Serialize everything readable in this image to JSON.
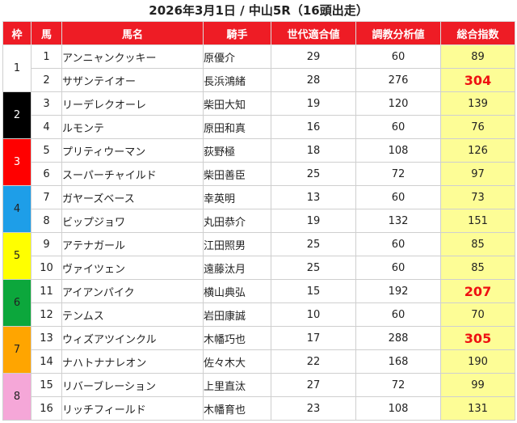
{
  "title": "2026年3月1日 / 中山5R（16頭出走）",
  "headers": {
    "waku": "枠",
    "umaban": "馬",
    "horse": "馬名",
    "jockey": "騎手",
    "generation": "世代適合値",
    "training": "調教分析値",
    "total": "総合指数"
  },
  "colors": {
    "header_bg": "#ee1c25",
    "score_bg": "#fdfd96",
    "highlight": "#ee1111"
  },
  "waku_groups": [
    {
      "label": "1",
      "class": "w1"
    },
    {
      "label": "2",
      "class": "w2"
    },
    {
      "label": "3",
      "class": "w3"
    },
    {
      "label": "4",
      "class": "w4"
    },
    {
      "label": "5",
      "class": "w5"
    },
    {
      "label": "6",
      "class": "w6"
    },
    {
      "label": "7",
      "class": "w7"
    },
    {
      "label": "8",
      "class": "w8"
    }
  ],
  "rows": [
    {
      "umaban": "1",
      "horse": "アンニャンクッキー",
      "jockey": "原優介",
      "generation": "29",
      "training": "60",
      "total": "89",
      "highlight": false
    },
    {
      "umaban": "2",
      "horse": "サザンテイオー",
      "jockey": "長浜鴻緒",
      "generation": "28",
      "training": "276",
      "total": "304",
      "highlight": true
    },
    {
      "umaban": "3",
      "horse": "リーデレクオーレ",
      "jockey": "柴田大知",
      "generation": "19",
      "training": "120",
      "total": "139",
      "highlight": false
    },
    {
      "umaban": "4",
      "horse": "ルモンテ",
      "jockey": "原田和真",
      "generation": "16",
      "training": "60",
      "total": "76",
      "highlight": false
    },
    {
      "umaban": "5",
      "horse": "プリティウーマン",
      "jockey": "荻野極",
      "generation": "18",
      "training": "108",
      "total": "126",
      "highlight": false
    },
    {
      "umaban": "6",
      "horse": "スーパーチャイルド",
      "jockey": "柴田善臣",
      "generation": "25",
      "training": "72",
      "total": "97",
      "highlight": false
    },
    {
      "umaban": "7",
      "horse": "ガヤーズベース",
      "jockey": "幸英明",
      "generation": "13",
      "training": "60",
      "total": "73",
      "highlight": false
    },
    {
      "umaban": "8",
      "horse": "ビップジョワ",
      "jockey": "丸田恭介",
      "generation": "19",
      "training": "132",
      "total": "151",
      "highlight": false
    },
    {
      "umaban": "9",
      "horse": "アテナガール",
      "jockey": "江田照男",
      "generation": "25",
      "training": "60",
      "total": "85",
      "highlight": false
    },
    {
      "umaban": "10",
      "horse": "ヴァイツェン",
      "jockey": "遠藤汰月",
      "generation": "25",
      "training": "60",
      "total": "85",
      "highlight": false
    },
    {
      "umaban": "11",
      "horse": "アイアンパイク",
      "jockey": "横山典弘",
      "generation": "15",
      "training": "192",
      "total": "207",
      "highlight": true
    },
    {
      "umaban": "12",
      "horse": "テンムス",
      "jockey": "岩田康誠",
      "generation": "10",
      "training": "60",
      "total": "70",
      "highlight": false
    },
    {
      "umaban": "13",
      "horse": "ウィズアツインクル",
      "jockey": "木幡巧也",
      "generation": "17",
      "training": "288",
      "total": "305",
      "highlight": true
    },
    {
      "umaban": "14",
      "horse": "ナハトナナレオン",
      "jockey": "佐々木大",
      "generation": "22",
      "training": "168",
      "total": "190",
      "highlight": false
    },
    {
      "umaban": "15",
      "horse": "リバーブレーション",
      "jockey": "上里直汰",
      "generation": "27",
      "training": "72",
      "total": "99",
      "highlight": false
    },
    {
      "umaban": "16",
      "horse": "リッチフィールド",
      "jockey": "木幡育也",
      "generation": "23",
      "training": "108",
      "total": "131",
      "highlight": false
    }
  ]
}
